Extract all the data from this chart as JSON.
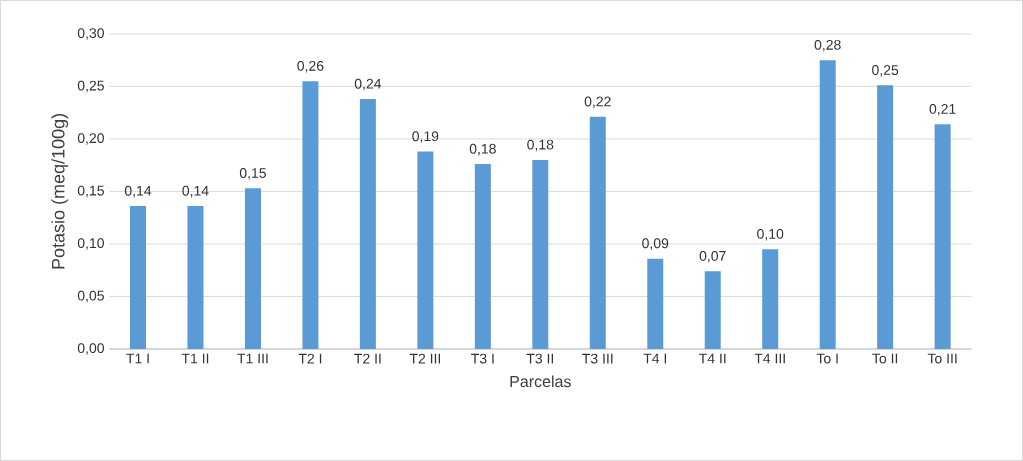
{
  "chart_data": {
    "type": "bar",
    "xlabel": "Parcelas",
    "ylabel": "Potasio (meq/100g)",
    "categories": [
      "T1 I",
      "T1 II",
      "T1 III",
      "T2 I",
      "T2 II",
      "T2 III",
      "T3 I",
      "T3 II",
      "T3 III",
      "T4 I",
      "T4 II",
      "T4 III",
      "To I",
      "To II",
      "To III"
    ],
    "values": [
      0.136,
      0.136,
      0.153,
      0.255,
      0.238,
      0.188,
      0.176,
      0.18,
      0.221,
      0.086,
      0.074,
      0.095,
      0.275,
      0.251,
      0.214
    ],
    "value_labels": [
      "0,14",
      "0,14",
      "0,15",
      "0,26",
      "0,24",
      "0,19",
      "0,18",
      "0,18",
      "0,22",
      "0,09",
      "0,07",
      "0,10",
      "0,28",
      "0,25",
      "0,21"
    ],
    "color": "#5b9bd5",
    "ylim": [
      0,
      0.3
    ],
    "yticks": [
      {
        "value": 0,
        "label": "0,00"
      },
      {
        "value": 0.05,
        "label": "0,05"
      },
      {
        "value": 0.1,
        "label": "0,10"
      },
      {
        "value": 0.15,
        "label": "0,15"
      },
      {
        "value": 0.2,
        "label": "0,20"
      },
      {
        "value": 0.25,
        "label": "0,25"
      },
      {
        "value": 0.3,
        "label": "0,30"
      }
    ],
    "grid": "y"
  }
}
